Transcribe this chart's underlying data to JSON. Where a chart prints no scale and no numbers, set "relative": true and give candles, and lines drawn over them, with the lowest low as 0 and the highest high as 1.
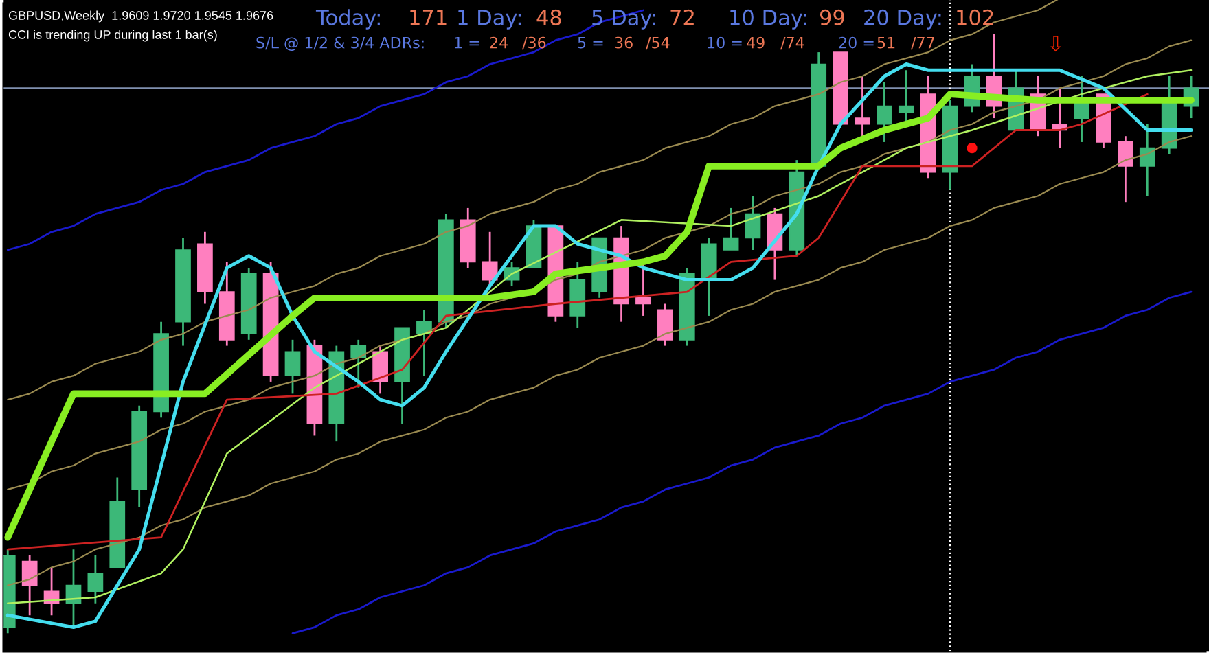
{
  "chart_data": {
    "type": "candlestick",
    "title": "GBPUSD,Weekly  1.9609 1.9720 1.9545 1.9676",
    "subtitle": "CCI is trending UP during last 1 bar(s)",
    "annotations": [
      "Today:",
      "171",
      "1 Day:",
      "48",
      "5 Day:",
      "72",
      "10 Day:",
      "99",
      "20 Day:",
      "102",
      "S/L @ 1/2 & 3/4 ADRs:",
      "1 =",
      "24",
      "/36",
      "5 =",
      "36",
      "/54",
      "10 =",
      "49",
      "/74",
      "20 =",
      "51",
      "/77",
      "⇩"
    ],
    "relative": true,
    "categories": [
      null,
      null,
      null,
      null,
      null,
      null,
      null,
      null,
      null,
      null,
      null,
      null,
      null,
      null,
      null,
      null,
      null,
      null,
      null,
      null,
      null,
      null,
      null,
      null,
      null,
      null,
      null,
      null,
      null,
      null,
      null,
      null,
      null,
      null,
      null,
      null,
      null,
      null,
      null,
      null,
      null,
      null,
      null,
      null,
      null,
      null,
      null,
      null,
      null,
      null,
      null,
      null,
      null,
      null,
      null
    ],
    "ohlc": [
      [
        0.01,
        0.14,
        0,
        0.13
      ],
      [
        0.12,
        0.13,
        0.03,
        0.08
      ],
      [
        0.07,
        0.11,
        0.03,
        0.05
      ],
      [
        0.05,
        0.14,
        0.01,
        0.08
      ],
      [
        0.07,
        0.13,
        0.05,
        0.1
      ],
      [
        0.11,
        0.26,
        0.11,
        0.22
      ],
      [
        0.24,
        0.38,
        0.21,
        0.37
      ],
      [
        0.37,
        0.52,
        0.36,
        0.5
      ],
      [
        0.52,
        0.66,
        0.48,
        0.64
      ],
      [
        0.65,
        0.67,
        0.55,
        0.57
      ],
      [
        0.57,
        0.62,
        0.48,
        0.49
      ],
      [
        0.5,
        0.61,
        0.49,
        0.6
      ],
      [
        0.6,
        0.62,
        0.42,
        0.43
      ],
      [
        0.43,
        0.49,
        0.4,
        0.47
      ],
      [
        0.48,
        0.49,
        0.33,
        0.35
      ],
      [
        0.35,
        0.48,
        0.32,
        0.47
      ],
      [
        0.46,
        0.49,
        0.41,
        0.48
      ],
      [
        0.47,
        0.48,
        0.4,
        0.42
      ],
      [
        0.42,
        0.51,
        0.35,
        0.51
      ],
      [
        0.5,
        0.54,
        0.43,
        0.52
      ],
      [
        0.52,
        0.7,
        0.51,
        0.69
      ],
      [
        0.69,
        0.71,
        0.61,
        0.62
      ],
      [
        0.62,
        0.67,
        0.58,
        0.59
      ],
      [
        0.59,
        0.62,
        0.58,
        0.61
      ],
      [
        0.61,
        0.69,
        0.61,
        0.68
      ],
      [
        0.68,
        0.68,
        0.52,
        0.53
      ],
      [
        0.53,
        0.62,
        0.51,
        0.59
      ],
      [
        0.57,
        0.66,
        0.56,
        0.66
      ],
      [
        0.66,
        0.68,
        0.52,
        0.55
      ],
      [
        0.56,
        0.62,
        0.53,
        0.55
      ],
      [
        0.54,
        0.55,
        0.48,
        0.49
      ],
      [
        0.49,
        0.61,
        0.48,
        0.6
      ],
      [
        0.59,
        0.66,
        0.53,
        0.65
      ],
      [
        0.64,
        0.71,
        0.64,
        0.66
      ],
      [
        0.66,
        0.73,
        0.64,
        0.7
      ],
      [
        0.7,
        0.71,
        0.59,
        0.64
      ],
      [
        0.64,
        0.79,
        0.63,
        0.77
      ],
      [
        0.78,
        0.97,
        0.78,
        0.95
      ],
      [
        0.97,
        0.97,
        0.85,
        0.85
      ],
      [
        0.86,
        0.93,
        0.83,
        0.85
      ],
      [
        0.85,
        0.92,
        0.82,
        0.88
      ],
      [
        0.87,
        0.94,
        0.85,
        0.88
      ],
      [
        0.9,
        0.93,
        0.76,
        0.77
      ],
      [
        0.77,
        0.89,
        0.74,
        0.88
      ],
      [
        0.88,
        0.95,
        0.87,
        0.93
      ],
      [
        0.93,
        1,
        0.86,
        0.88
      ],
      [
        0.84,
        0.94,
        0.84,
        0.91
      ],
      [
        0.9,
        0.93,
        0.83,
        0.84
      ],
      [
        0.85,
        0.91,
        0.81,
        0.84
      ],
      [
        0.86,
        0.93,
        0.82,
        0.89
      ],
      [
        0.9,
        0.9,
        0.81,
        0.82
      ],
      [
        0.82,
        0.83,
        0.72,
        0.78
      ],
      [
        0.78,
        0.85,
        0.73,
        0.81
      ],
      [
        0.81,
        0.93,
        0.8,
        0.89
      ],
      [
        0.88,
        0.93,
        0.86,
        0.91
      ]
    ],
    "colors": [
      "#3cb878",
      "#ff7fbf",
      "#ff7fbf",
      "#3cb878",
      "#3cb878",
      "#3cb878",
      "#3cb878",
      "#3cb878",
      "#3cb878",
      "#ff7fbf",
      "#ff7fbf",
      "#3cb878",
      "#ff7fbf",
      "#3cb878",
      "#ff7fbf",
      "#3cb878",
      "#3cb878",
      "#ff7fbf",
      "#3cb878",
      "#3cb878",
      "#3cb878",
      "#ff7fbf",
      "#ff7fbf",
      "#3cb878",
      "#3cb878",
      "#ff7fbf",
      "#3cb878",
      "#3cb878",
      "#ff7fbf",
      "#ff7fbf",
      "#ff7fbf",
      "#3cb878",
      "#3cb878",
      "#3cb878",
      "#3cb878",
      "#ff7fbf",
      "#3cb878",
      "#3cb878",
      "#ff7fbf",
      "#ff7fbf",
      "#3cb878",
      "#3cb878",
      "#ff7fbf",
      "#3cb878",
      "#3cb878",
      "#ff7fbf",
      "#3cb878",
      "#ff7fbf",
      "#ff7fbf",
      "#3cb878",
      "#ff7fbf",
      "#ff7fbf",
      "#3cb878",
      "#3cb878",
      "#3cb878"
    ],
    "series": [
      {
        "type": "line",
        "color": "#1a1acc",
        "values": [
          0.64,
          0.65,
          0.67,
          0.68,
          0.7,
          0.71,
          0.72,
          0.74,
          0.75,
          0.77,
          0.78,
          0.79,
          0.81,
          0.82,
          0.83,
          0.85,
          0.86,
          0.88,
          0.89,
          0.9,
          0.92,
          0.93,
          0.95,
          0.96,
          0.97,
          0.99,
          1.0,
          1.02,
          1.03,
          1.04,
          null,
          null,
          null,
          null,
          null,
          null,
          null,
          null,
          null,
          null,
          null,
          null,
          null,
          null,
          null,
          null,
          null,
          null,
          null,
          null,
          null,
          null,
          null,
          null,
          null
        ]
      },
      {
        "type": "line",
        "color": "#1a1acc",
        "values": [
          null,
          null,
          null,
          null,
          null,
          null,
          null,
          null,
          null,
          null,
          null,
          null,
          null,
          0.0,
          0.01,
          0.03,
          0.04,
          0.06,
          0.07,
          0.08,
          0.1,
          0.11,
          0.13,
          0.14,
          0.15,
          0.17,
          0.18,
          0.19,
          0.21,
          0.22,
          0.24,
          0.25,
          0.26,
          0.28,
          0.29,
          0.31,
          0.32,
          0.33,
          0.35,
          0.36,
          0.38,
          0.39,
          0.4,
          0.42,
          0.43,
          0.44,
          0.46,
          0.47,
          0.49,
          0.5,
          0.51,
          0.53,
          0.54,
          0.56,
          0.57
        ]
      },
      {
        "type": "line",
        "color": "#9a8a50",
        "values": [
          0.39,
          0.4,
          0.42,
          0.43,
          0.45,
          0.46,
          0.47,
          0.49,
          0.5,
          0.52,
          0.53,
          0.54,
          0.56,
          0.57,
          0.58,
          0.6,
          0.61,
          0.63,
          0.64,
          0.65,
          0.67,
          0.68,
          0.7,
          0.71,
          0.72,
          0.74,
          0.75,
          0.77,
          0.78,
          0.79,
          0.81,
          0.82,
          0.83,
          0.85,
          0.86,
          0.88,
          0.89,
          0.9,
          0.92,
          0.93,
          0.95,
          0.96,
          0.97,
          0.99,
          1.0,
          1.02,
          1.03,
          1.04,
          1.06,
          null,
          null,
          null,
          null,
          null,
          null
        ]
      },
      {
        "type": "line",
        "color": "#9a8a50",
        "values": [
          0.24,
          0.25,
          0.27,
          0.28,
          0.3,
          0.31,
          0.32,
          0.34,
          0.35,
          0.37,
          0.38,
          0.39,
          0.41,
          0.42,
          0.43,
          0.45,
          0.46,
          0.48,
          0.49,
          0.5,
          0.52,
          0.53,
          0.55,
          0.56,
          0.57,
          0.59,
          0.6,
          0.62,
          0.63,
          0.64,
          0.66,
          0.67,
          0.68,
          0.7,
          0.71,
          0.73,
          0.74,
          0.75,
          0.77,
          0.78,
          0.8,
          0.81,
          0.82,
          0.84,
          0.85,
          0.87,
          0.88,
          0.89,
          0.91,
          0.92,
          0.93,
          0.95,
          0.96,
          0.98,
          0.99
        ]
      },
      {
        "type": "line",
        "color": "#9a8a50",
        "values": [
          0.08,
          0.09,
          0.11,
          0.12,
          0.14,
          0.15,
          0.16,
          0.18,
          0.19,
          0.21,
          0.22,
          0.23,
          0.25,
          0.26,
          0.27,
          0.29,
          0.3,
          0.32,
          0.33,
          0.34,
          0.36,
          0.37,
          0.39,
          0.4,
          0.41,
          0.43,
          0.44,
          0.46,
          0.47,
          0.48,
          0.5,
          0.51,
          0.52,
          0.54,
          0.55,
          0.57,
          0.58,
          0.59,
          0.61,
          0.62,
          0.64,
          0.65,
          0.66,
          0.68,
          0.69,
          0.71,
          0.72,
          0.73,
          0.75,
          0.76,
          0.77,
          0.79,
          0.8,
          0.82,
          0.83
        ]
      },
      {
        "type": "line",
        "color": "#b0f060",
        "values": [
          0.05,
          null,
          null,
          null,
          0.06,
          null,
          null,
          0.1,
          0.14,
          null,
          0.3,
          null,
          null,
          null,
          0.41,
          null,
          null,
          null,
          0.49,
          null,
          0.51,
          null,
          null,
          0.6,
          null,
          null,
          null,
          null,
          0.69,
          null,
          null,
          null,
          null,
          0.68,
          null,
          null,
          null,
          0.73,
          null,
          null,
          null,
          0.81,
          null,
          null,
          0.84,
          null,
          null,
          null,
          null,
          0.9,
          null,
          null,
          0.93,
          null,
          0.94
        ]
      },
      {
        "type": "line",
        "color": "#cc2222",
        "values": [
          0.14,
          null,
          null,
          null,
          null,
          null,
          null,
          0.16,
          null,
          null,
          0.39,
          null,
          null,
          null,
          null,
          0.4,
          null,
          null,
          0.44,
          null,
          0.53,
          null,
          null,
          null,
          null,
          0.55,
          null,
          null,
          null,
          null,
          null,
          0.57,
          null,
          0.62,
          null,
          null,
          0.63,
          0.66,
          null,
          0.78,
          null,
          null,
          null,
          null,
          0.78,
          null,
          0.84,
          null,
          0.84,
          0.85,
          null,
          null,
          0.9,
          null,
          null
        ]
      },
      {
        "type": "line",
        "color": "#44ddee",
        "values": [
          0.03,
          null,
          null,
          0.01,
          0.02,
          null,
          0.14,
          null,
          0.42,
          null,
          0.61,
          0.63,
          0.61,
          0.53,
          0.47,
          null,
          0.42,
          0.39,
          0.38,
          0.41,
          0.47,
          null,
          0.58,
          null,
          0.68,
          0.68,
          0.65,
          null,
          0.63,
          0.61,
          null,
          0.59,
          null,
          0.59,
          0.61,
          null,
          0.7,
          0.78,
          0.85,
          null,
          0.93,
          0.95,
          0.94,
          null,
          null,
          null,
          0.94,
          null,
          0.94,
          null,
          0.91,
          null,
          0.84,
          0.84,
          0.84
        ]
      },
      {
        "type": "line",
        "color": "#88ee22",
        "values": [
          0.16,
          null,
          null,
          0.4,
          null,
          null,
          null,
          null,
          null,
          0.4,
          null,
          null,
          null,
          0.53,
          0.56,
          null,
          null,
          null,
          null,
          null,
          null,
          0.56,
          0.56,
          null,
          0.57,
          0.6,
          null,
          0.61,
          null,
          0.62,
          0.63,
          0.67,
          0.78,
          null,
          null,
          null,
          0.78,
          0.78,
          0.81,
          null,
          0.84,
          null,
          0.86,
          0.9,
          null,
          null,
          null,
          0.89,
          null,
          null,
          null,
          null,
          null,
          null,
          0.89
        ]
      },
      {
        "type": "scatter",
        "color": "#ff1111",
        "marker": "circle",
        "values": [
          null,
          null,
          null,
          null,
          null,
          null,
          null,
          null,
          null,
          null,
          null,
          null,
          null,
          null,
          null,
          null,
          null,
          null,
          null,
          null,
          null,
          null,
          null,
          null,
          null,
          null,
          null,
          null,
          null,
          null,
          null,
          null,
          null,
          null,
          null,
          null,
          null,
          null,
          null,
          null,
          null,
          null,
          null,
          null,
          0.81,
          null,
          null,
          null,
          null,
          null,
          null,
          null,
          null,
          null,
          null
        ]
      }
    ],
    "ref_lines": [
      {
        "axis": "y",
        "value": 0.91,
        "color": "#8090b0",
        "line_style": "solid"
      }
    ]
  }
}
